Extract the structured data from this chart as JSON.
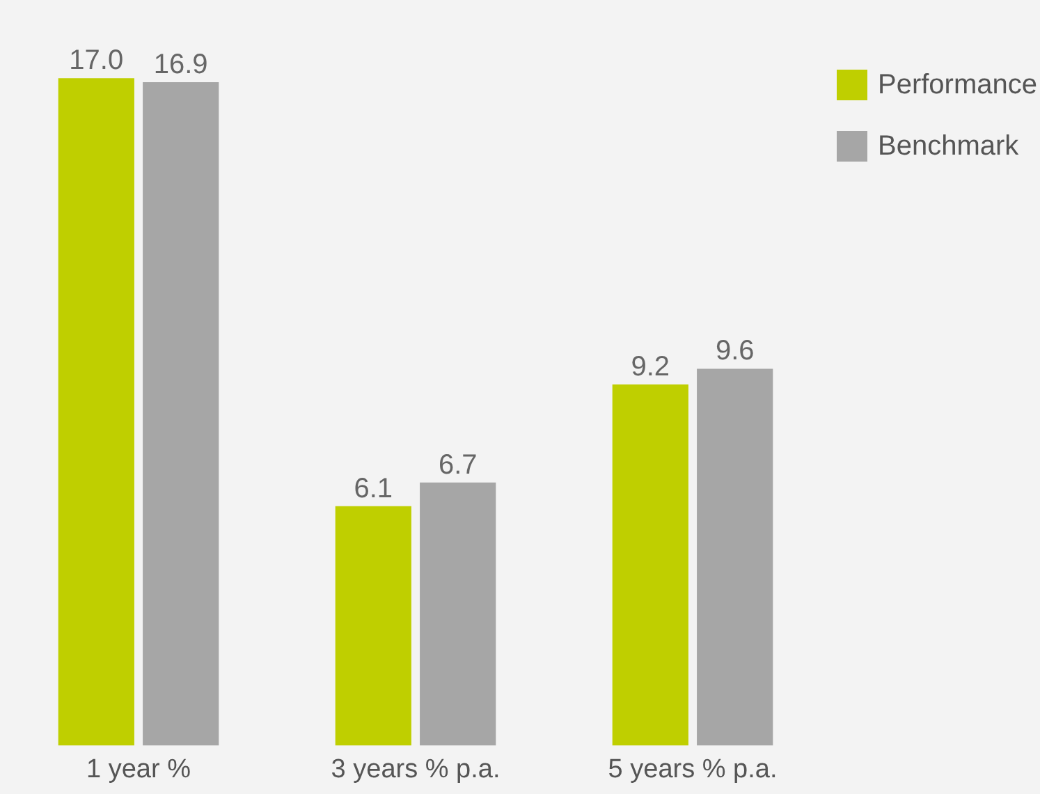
{
  "chart_data": {
    "type": "bar",
    "categories": [
      "1 year %",
      "3 years % p.a.",
      "5 years % p.a."
    ],
    "series": [
      {
        "name": "Performance",
        "color": "#bfcf00",
        "values": [
          17.0,
          6.1,
          9.2
        ],
        "value_labels": [
          "17.0",
          "6.1",
          "9.2"
        ]
      },
      {
        "name": "Benchmark",
        "color": "#a6a6a6",
        "values": [
          16.9,
          6.7,
          9.6
        ],
        "value_labels": [
          "16.9",
          "6.7",
          "9.6"
        ]
      }
    ],
    "grid": false,
    "legend": "top right",
    "tick_labels": "x"
  }
}
